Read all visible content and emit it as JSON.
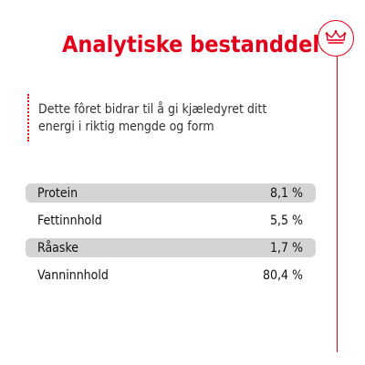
{
  "colors": {
    "accent": "#e2001a",
    "row_shade": "#d4d4d4",
    "text": "#111111"
  },
  "header": {
    "title": "Analytiske bestanddeler",
    "logo_icon": "crown-icon"
  },
  "description": {
    "text": "Dette fôret bidrar til å gi kjæledyret ditt energi i riktig mengde og form"
  },
  "table": {
    "rows": [
      {
        "label": "Protein",
        "value": "8,1 %"
      },
      {
        "label": "Fettinnhold",
        "value": "5,5 %"
      },
      {
        "label": "Råaske",
        "value": "1,7 %"
      },
      {
        "label": "Vanninnhold",
        "value": "80,4 %"
      }
    ]
  }
}
